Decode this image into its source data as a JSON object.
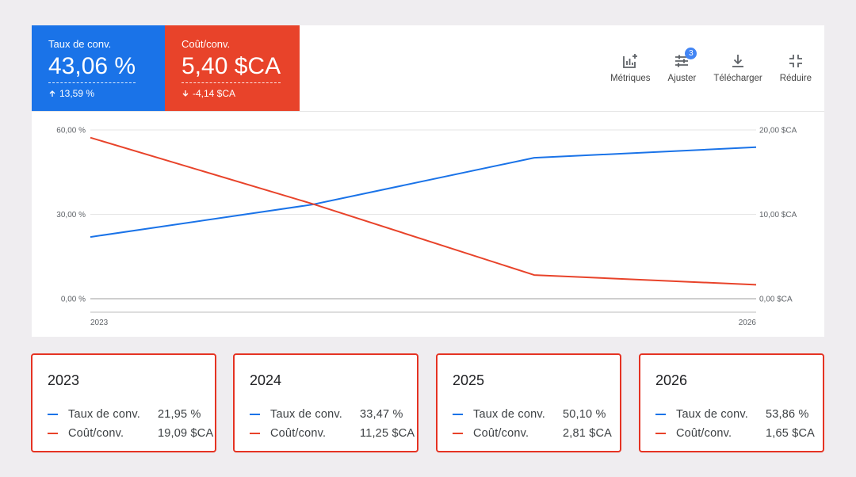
{
  "scorecards": [
    {
      "label": "Taux de conv.",
      "value": "43,06 %",
      "delta": "13,59 %",
      "direction": "up",
      "color": "#1a73e8"
    },
    {
      "label": "Coût/conv.",
      "value": "5,40 $CA",
      "delta": "-4,14 $CA",
      "direction": "down",
      "color": "#e8432a"
    }
  ],
  "toolbar": {
    "metrics_label": "Métriques",
    "adjust_label": "Ajuster",
    "adjust_badge": "3",
    "download_label": "Télécharger",
    "reduce_label": "Réduire"
  },
  "chart_data": {
    "type": "line",
    "x": [
      2023,
      2024,
      2025,
      2026
    ],
    "x_tick_labels": [
      "2023",
      "2026"
    ],
    "series": [
      {
        "name": "Taux de conv.",
        "axis": "left",
        "color": "#1a73e8",
        "values": [
          21.95,
          33.47,
          50.1,
          53.86
        ]
      },
      {
        "name": "Coût/conv.",
        "axis": "right",
        "color": "#e8432a",
        "values": [
          19.09,
          11.25,
          2.81,
          1.65
        ]
      }
    ],
    "left_axis": {
      "range": [
        0,
        60
      ],
      "ticks": [
        {
          "v": 0,
          "label": "0,00 %"
        },
        {
          "v": 30,
          "label": "30,00 %"
        },
        {
          "v": 60,
          "label": "60,00 %"
        }
      ]
    },
    "right_axis": {
      "range": [
        0,
        20
      ],
      "ticks": [
        {
          "v": 0,
          "label": "0,00 $CA"
        },
        {
          "v": 10,
          "label": "10,00 $CA"
        },
        {
          "v": 20,
          "label": "20,00 $CA"
        }
      ]
    },
    "grid": true
  },
  "cards": [
    {
      "year": "2023",
      "rate_label": "Taux de conv.",
      "rate_value": "21,95 %",
      "cost_label": "Coût/conv.",
      "cost_value": "19,09 $CA"
    },
    {
      "year": "2024",
      "rate_label": "Taux de conv.",
      "rate_value": "33,47 %",
      "cost_label": "Coût/conv.",
      "cost_value": "11,25 $CA"
    },
    {
      "year": "2025",
      "rate_label": "Taux de conv.",
      "rate_value": "50,10 %",
      "cost_label": "Coût/conv.",
      "cost_value": "2,81 $CA"
    },
    {
      "year": "2026",
      "rate_label": "Taux de conv.",
      "rate_value": "53,86 %",
      "cost_label": "Coût/conv.",
      "cost_value": "1,65 $CA"
    }
  ]
}
